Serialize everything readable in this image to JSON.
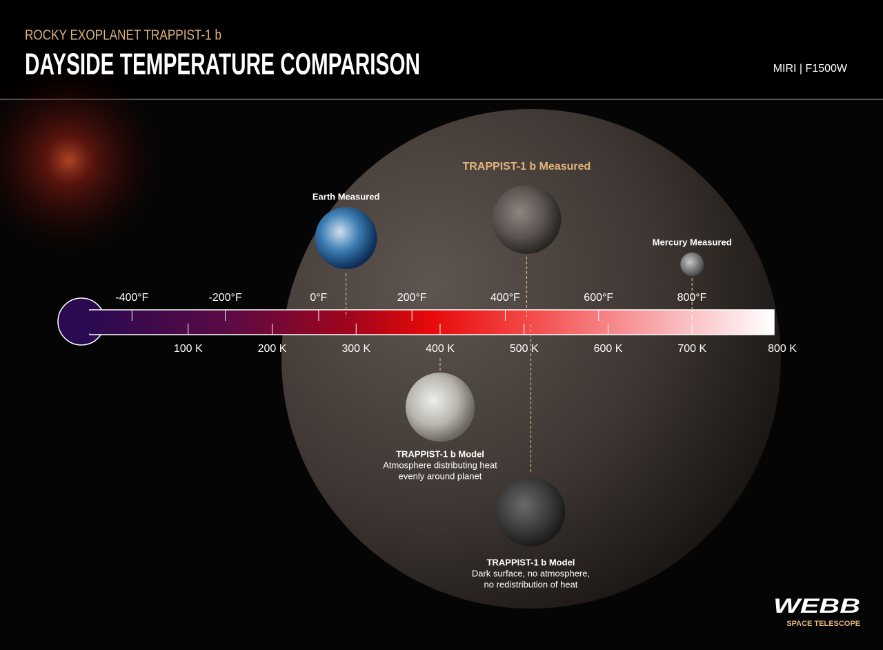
{
  "header": {
    "subtitle": "ROCKY EXOPLANET TRAPPIST-1 b",
    "title": "DAYSIDE TEMPERATURE COMPARISON",
    "instrument": "MIRI | F1500W"
  },
  "scale": {
    "xlim": [
      0,
      800
    ],
    "kelvin_ticks": [
      {
        "value": 100,
        "label": "100 K"
      },
      {
        "value": 200,
        "label": "200 K"
      },
      {
        "value": 300,
        "label": "300 K"
      },
      {
        "value": 400,
        "label": "400 K"
      },
      {
        "value": 500,
        "label": "500 K"
      },
      {
        "value": 600,
        "label": "600 K"
      },
      {
        "value": 700,
        "label": "700 K"
      },
      {
        "value": 800,
        "label": "800 K"
      }
    ],
    "fahrenheit_ticks": [
      {
        "value": -400,
        "label": "-400°F"
      },
      {
        "value": -200,
        "label": "-200°F"
      },
      {
        "value": 0,
        "label": "0°F"
      },
      {
        "value": 200,
        "label": "200°F"
      },
      {
        "value": 400,
        "label": "400°F"
      },
      {
        "value": 600,
        "label": "600°F"
      },
      {
        "value": 800,
        "label": "800°F"
      }
    ]
  },
  "markers": [
    {
      "label": "Earth Measured",
      "value": 288
    },
    {
      "label": "TRAPPIST-1 b Measured",
      "value": 503
    },
    {
      "label": "Mercury Measured",
      "value": 700
    },
    {
      "label": "TRAPPIST-1 b Model",
      "description": [
        "Atmosphere distributing heat",
        "evenly around planet"
      ],
      "value": 400
    },
    {
      "label": "TRAPPIST-1 b Model",
      "description": [
        "Dark surface, no atmosphere,",
        "no redistribution of heat"
      ],
      "value": 508
    }
  ],
  "logo": {
    "name": "WEBB",
    "tagline": "SPACE TELESCOPE"
  }
}
